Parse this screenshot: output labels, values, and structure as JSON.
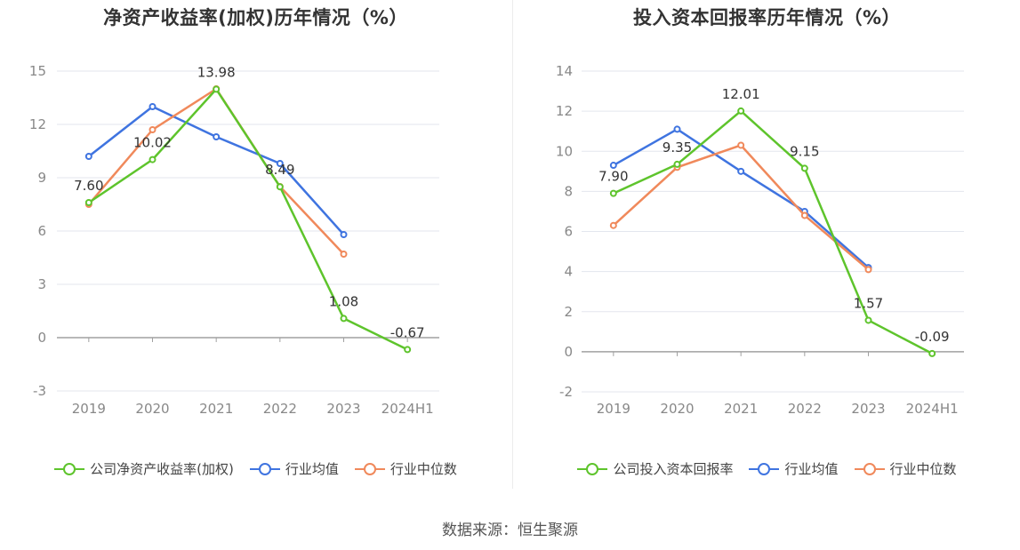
{
  "chart_data": [
    {
      "type": "line",
      "title": "净资产收益率(加权)历年情况（%）",
      "categories": [
        "2019",
        "2020",
        "2021",
        "2022",
        "2023",
        "2024H1"
      ],
      "ylim": [
        -3,
        15
      ],
      "yticks": [
        "15",
        "12",
        "9",
        "6",
        "3",
        "0",
        "-3"
      ],
      "grid": true,
      "legend_position": "bottom",
      "series": [
        {
          "name": "公司净资产收益率(加权)",
          "color": "#5ec42c",
          "values": [
            7.6,
            10.02,
            13.98,
            8.49,
            1.08,
            -0.67
          ],
          "labels": [
            "7.60",
            "10.02",
            "13.98",
            "8.49",
            "1.08",
            "-0.67"
          ]
        },
        {
          "name": "行业均值",
          "color": "#3f74e0",
          "values": [
            10.2,
            13.0,
            11.3,
            9.8,
            5.8,
            null
          ]
        },
        {
          "name": "行业中位数",
          "color": "#f0895b",
          "values": [
            7.5,
            11.7,
            14.0,
            8.5,
            4.7,
            null
          ]
        }
      ]
    },
    {
      "type": "line",
      "title": "投入资本回报率历年情况（%）",
      "categories": [
        "2019",
        "2020",
        "2021",
        "2022",
        "2023",
        "2024H1"
      ],
      "ylim": [
        -2,
        14
      ],
      "yticks": [
        "14",
        "12",
        "10",
        "8",
        "6",
        "4",
        "2",
        "0",
        "-2"
      ],
      "grid": true,
      "legend_position": "bottom",
      "series": [
        {
          "name": "公司投入资本回报率",
          "color": "#5ec42c",
          "values": [
            7.9,
            9.35,
            12.01,
            9.15,
            1.57,
            -0.09
          ],
          "labels": [
            "7.90",
            "9.35",
            "12.01",
            "9.15",
            "1.57",
            "-0.09"
          ]
        },
        {
          "name": "行业均值",
          "color": "#3f74e0",
          "values": [
            9.3,
            11.1,
            9.0,
            7.0,
            4.2,
            null
          ]
        },
        {
          "name": "行业中位数",
          "color": "#f0895b",
          "values": [
            6.3,
            9.2,
            10.3,
            6.8,
            4.1,
            null
          ]
        }
      ]
    }
  ],
  "source_text": "数据来源：恒生聚源"
}
